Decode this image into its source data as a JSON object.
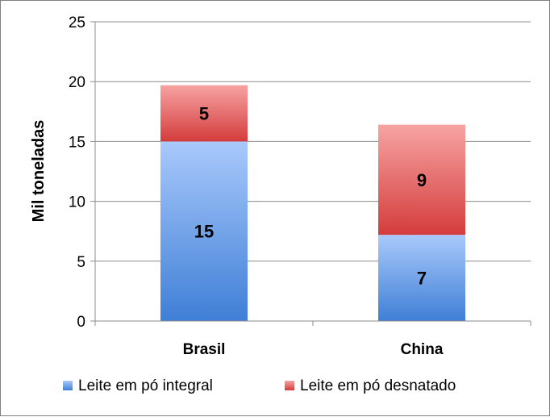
{
  "chart_data": {
    "type": "bar",
    "stacked": true,
    "categories": [
      "Brasil",
      "China"
    ],
    "series": [
      {
        "name": "Leite em pó integral",
        "values": [
          15,
          7.2
        ],
        "labels": [
          "15",
          "7"
        ],
        "color": "#5b93e0"
      },
      {
        "name": "Leite em pó desnatado",
        "values": [
          4.7,
          9.2
        ],
        "labels": [
          "5",
          "9"
        ],
        "color": "#e35a5a"
      }
    ],
    "xlabel": "",
    "ylabel": "Mil toneladas",
    "ylim": [
      0,
      25
    ],
    "yticks": [
      0,
      5,
      10,
      15,
      20,
      25
    ],
    "grid": true,
    "legend_position": "bottom"
  }
}
